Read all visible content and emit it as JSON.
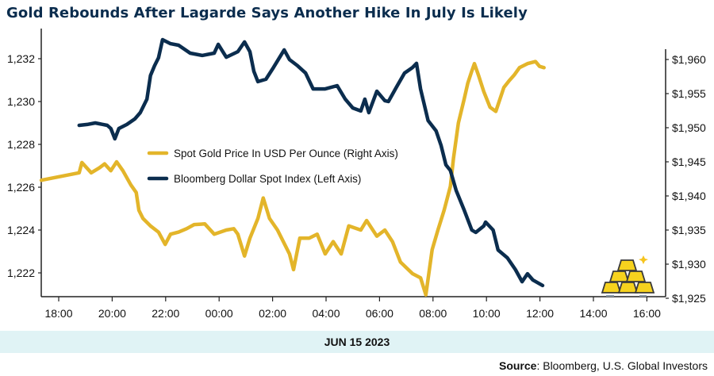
{
  "chart_data": {
    "type": "line",
    "title": "Gold Rebounds After Lagarde Says Another Hike In July Is Likely",
    "xlabel": "JUN 15 2023",
    "x_ticks": [
      "18:00",
      "20:00",
      "22:00",
      "00:00",
      "02:00",
      "04:00",
      "06:00",
      "08:00",
      "10:00",
      "12:00",
      "14:00",
      "16:00"
    ],
    "y_left": {
      "ticks": [
        "1,222",
        "1,224",
        "1,226",
        "1,228",
        "1,230",
        "1,232"
      ],
      "values": [
        1222,
        1224,
        1226,
        1228,
        1230,
        1232
      ],
      "ylim": [
        1220.93,
        1232.9
      ]
    },
    "y_right": {
      "ticks": [
        "$1,925",
        "$1,930",
        "$1,935",
        "$1,940",
        "$1,945",
        "$1,950",
        "$1,955",
        "$1,960"
      ],
      "values": [
        1925,
        1930,
        1935,
        1940,
        1945,
        1950,
        1955,
        1960
      ],
      "ylim": [
        1925,
        1962.9
      ]
    },
    "grid": false,
    "legend_placement": "center-left",
    "series": [
      {
        "name": "Spot Gold Price In USD Per Ounce (Right Axis)",
        "axis": "right",
        "color": "#e3b52a",
        "points": [
          [
            "17:21",
            1942.3
          ],
          [
            "18:46",
            1943.4
          ],
          [
            "18:52",
            1944.9
          ],
          [
            "19:13",
            1943.4
          ],
          [
            "19:31",
            1944.1
          ],
          [
            "19:43",
            1944.7
          ],
          [
            "19:57",
            1943.7
          ],
          [
            "20:10",
            1945.0
          ],
          [
            "20:24",
            1943.7
          ],
          [
            "20:42",
            1941.6
          ],
          [
            "20:54",
            1940.5
          ],
          [
            "21:00",
            1937.9
          ],
          [
            "21:09",
            1936.7
          ],
          [
            "21:26",
            1935.6
          ],
          [
            "21:44",
            1934.7
          ],
          [
            "21:59",
            1932.9
          ],
          [
            "22:11",
            1934.4
          ],
          [
            "22:29",
            1934.7
          ],
          [
            "22:47",
            1935.2
          ],
          [
            "23:04",
            1935.8
          ],
          [
            "23:28",
            1935.9
          ],
          [
            "23:49",
            1934.4
          ],
          [
            "00:16",
            1935.0
          ],
          [
            "00:33",
            1935.2
          ],
          [
            "00:42",
            1934.4
          ],
          [
            "00:57",
            1931.2
          ],
          [
            "01:09",
            1933.8
          ],
          [
            "01:27",
            1936.7
          ],
          [
            "01:39",
            1939.7
          ],
          [
            "01:53",
            1936.7
          ],
          [
            "02:11",
            1935.0
          ],
          [
            "02:38",
            1931.5
          ],
          [
            "02:47",
            1929.2
          ],
          [
            "03:01",
            1933.8
          ],
          [
            "03:22",
            1933.8
          ],
          [
            "03:40",
            1934.4
          ],
          [
            "03:58",
            1931.5
          ],
          [
            "04:16",
            1933.3
          ],
          [
            "04:34",
            1931.5
          ],
          [
            "04:51",
            1935.6
          ],
          [
            "05:18",
            1935.0
          ],
          [
            "05:31",
            1936.4
          ],
          [
            "05:54",
            1934.1
          ],
          [
            "06:12",
            1935.0
          ],
          [
            "06:29",
            1933.3
          ],
          [
            "06:47",
            1930.3
          ],
          [
            "07:14",
            1928.6
          ],
          [
            "07:32",
            1928.0
          ],
          [
            "07:44",
            1925.5
          ],
          [
            "07:58",
            1932.1
          ],
          [
            "08:11",
            1935.0
          ],
          [
            "08:25",
            1937.9
          ],
          [
            "08:39",
            1941.4
          ],
          [
            "08:46",
            1945.5
          ],
          [
            "08:57",
            1950.7
          ],
          [
            "09:10",
            1954.2
          ],
          [
            "09:18",
            1956.5
          ],
          [
            "09:27",
            1958.3
          ],
          [
            "09:33",
            1959.4
          ],
          [
            "09:42",
            1957.7
          ],
          [
            "09:54",
            1955.3
          ],
          [
            "10:08",
            1953.0
          ],
          [
            "10:21",
            1952.4
          ],
          [
            "10:39",
            1955.9
          ],
          [
            "10:51",
            1956.9
          ],
          [
            "11:02",
            1957.7
          ],
          [
            "11:14",
            1958.8
          ],
          [
            "11:32",
            1959.4
          ],
          [
            "11:50",
            1959.7
          ],
          [
            "11:59",
            1959.0
          ],
          [
            "12:09",
            1958.8
          ]
        ]
      },
      {
        "name": "Bloomberg Dollar Spot Index (Left Axis)",
        "axis": "left",
        "color": "#0b2d4e",
        "points": [
          [
            "18:46",
            1228.89
          ],
          [
            "19:04",
            1228.93
          ],
          [
            "19:22",
            1229.0
          ],
          [
            "19:49",
            1228.89
          ],
          [
            "19:57",
            1228.74
          ],
          [
            "20:06",
            1228.26
          ],
          [
            "20:15",
            1228.74
          ],
          [
            "20:33",
            1228.93
          ],
          [
            "20:51",
            1229.19
          ],
          [
            "21:03",
            1229.48
          ],
          [
            "21:18",
            1230.11
          ],
          [
            "21:26",
            1231.22
          ],
          [
            "21:35",
            1231.67
          ],
          [
            "21:44",
            1232.04
          ],
          [
            "21:53",
            1232.89
          ],
          [
            "22:11",
            1232.7
          ],
          [
            "22:29",
            1232.63
          ],
          [
            "22:55",
            1232.26
          ],
          [
            "23:22",
            1232.15
          ],
          [
            "23:49",
            1232.26
          ],
          [
            "23:58",
            1232.67
          ],
          [
            "00:16",
            1232.07
          ],
          [
            "00:42",
            1232.33
          ],
          [
            "00:57",
            1232.78
          ],
          [
            "01:09",
            1232.33
          ],
          [
            "01:18",
            1231.41
          ],
          [
            "01:27",
            1230.93
          ],
          [
            "01:45",
            1231.04
          ],
          [
            "02:02",
            1231.59
          ],
          [
            "02:26",
            1232.41
          ],
          [
            "02:38",
            1231.96
          ],
          [
            "02:56",
            1231.67
          ],
          [
            "03:14",
            1231.33
          ],
          [
            "03:31",
            1230.59
          ],
          [
            "03:58",
            1230.59
          ],
          [
            "04:25",
            1230.74
          ],
          [
            "04:43",
            1230.11
          ],
          [
            "05:00",
            1229.7
          ],
          [
            "05:18",
            1229.56
          ],
          [
            "05:27",
            1230.11
          ],
          [
            "05:36",
            1229.48
          ],
          [
            "05:54",
            1230.48
          ],
          [
            "06:12",
            1230.04
          ],
          [
            "06:20",
            1230.0
          ],
          [
            "06:38",
            1230.67
          ],
          [
            "06:56",
            1231.33
          ],
          [
            "07:14",
            1231.59
          ],
          [
            "07:23",
            1231.78
          ],
          [
            "07:32",
            1230.59
          ],
          [
            "07:49",
            1229.11
          ],
          [
            "08:07",
            1228.63
          ],
          [
            "08:18",
            1227.96
          ],
          [
            "08:29",
            1227.04
          ],
          [
            "08:39",
            1226.78
          ],
          [
            "08:52",
            1225.85
          ],
          [
            "09:10",
            1224.93
          ],
          [
            "09:27",
            1224.0
          ],
          [
            "09:36",
            1223.89
          ],
          [
            "09:54",
            1224.19
          ],
          [
            "09:58",
            1224.37
          ],
          [
            "10:15",
            1224.0
          ],
          [
            "10:26",
            1223.07
          ],
          [
            "10:47",
            1222.7
          ],
          [
            "11:05",
            1222.15
          ],
          [
            "11:20",
            1221.59
          ],
          [
            "11:32",
            1221.96
          ],
          [
            "11:44",
            1221.67
          ],
          [
            "12:06",
            1221.41
          ]
        ]
      }
    ]
  },
  "source": {
    "label": "Source",
    "text": ": Bloomberg, U.S. Global Investors"
  },
  "icon": "gold-bars-icon"
}
